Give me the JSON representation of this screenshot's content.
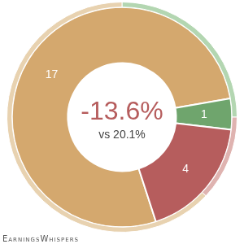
{
  "chart_data": {
    "type": "doughnut",
    "series": [
      {
        "values": [
          25,
          12,
          63
        ],
        "colors": [
          "#b3d6b1",
          "#dfb3b0",
          "#e8d2b0"
        ]
      },
      {
        "values": [
          17,
          1,
          4
        ],
        "colors": [
          "#d4a86e",
          "#6fa56d",
          "#b65d5d"
        ],
        "data_labels": true
      }
    ],
    "annotations": [
      "-13.6%",
      "vs 20.1%"
    ],
    "footer": "EarningsWhispers"
  }
}
